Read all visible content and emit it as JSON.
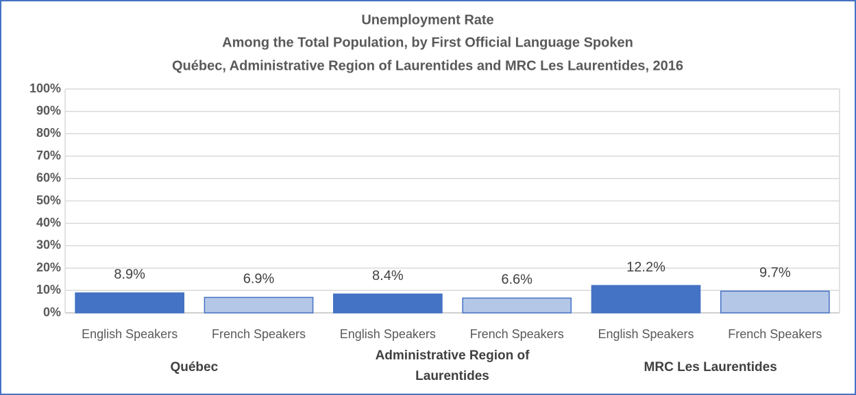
{
  "chart_data": {
    "type": "bar",
    "title": "Unemployment Rate",
    "subtitle": [
      "Among the Total Population, by First Official Language Spoken",
      "Québec, Administrative Region of Laurentides and MRC Les Laurentides, 2016"
    ],
    "categories": [
      "English Speakers",
      "French Speakers",
      "English Speakers",
      "French Speakers",
      "English Speakers",
      "French Speakers"
    ],
    "groups": [
      "Québec",
      "Administrative Region of Laurentides",
      "MRC Les Laurentides"
    ],
    "values": [
      8.9,
      6.9,
      8.4,
      6.6,
      12.2,
      9.7
    ],
    "value_labels": [
      "8.9%",
      "6.9%",
      "8.4%",
      "6.6%",
      "12.2%",
      "9.7%"
    ],
    "colors": [
      "#4472c4",
      "#b4c7e7",
      "#4472c4",
      "#b4c7e7",
      "#4472c4",
      "#b4c7e7"
    ],
    "ylim": [
      0,
      100
    ],
    "yticks": [
      {
        "value": 0,
        "label": "0%"
      },
      {
        "value": 10,
        "label": "10%"
      },
      {
        "value": 20,
        "label": "20%"
      },
      {
        "value": 30,
        "label": "30%"
      },
      {
        "value": 40,
        "label": "40%"
      },
      {
        "value": 50,
        "label": "50%"
      },
      {
        "value": 60,
        "label": "60%"
      },
      {
        "value": 70,
        "label": "70%"
      },
      {
        "value": 80,
        "label": "80%"
      },
      {
        "value": 90,
        "label": "90%"
      },
      {
        "value": 100,
        "label": "100%"
      }
    ],
    "grid": true
  }
}
